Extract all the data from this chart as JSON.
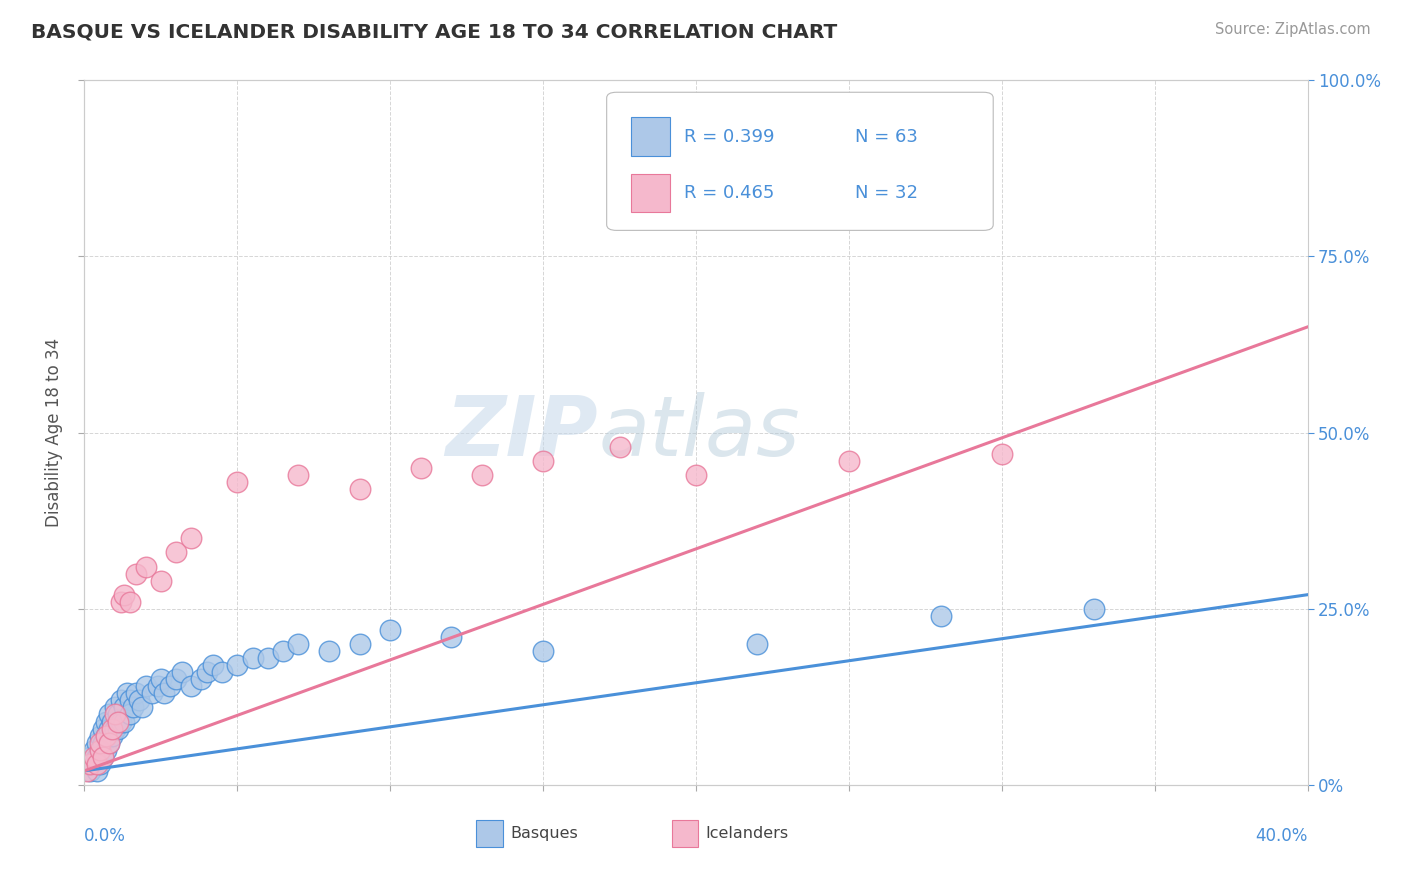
{
  "title": "BASQUE VS ICELANDER DISABILITY AGE 18 TO 34 CORRELATION CHART",
  "source": "Source: ZipAtlas.com",
  "ylabel": "Disability Age 18 to 34",
  "legend_blue_r": "R = 0.399",
  "legend_blue_n": "N = 63",
  "legend_pink_r": "R = 0.465",
  "legend_pink_n": "N = 32",
  "basque_color": "#adc8e8",
  "icelander_color": "#f5b8cc",
  "basque_line_color": "#4a90d9",
  "icelander_line_color": "#e8789a",
  "watermark": "ZIPatlas",
  "watermark_color_r": 180,
  "watermark_color_g": 210,
  "watermark_color_b": 235,
  "xmin": 0.0,
  "xmax": 0.4,
  "ymin": 0.0,
  "ymax": 1.0,
  "basque_line_x0": 0.0,
  "basque_line_y0": 0.02,
  "basque_line_x1": 0.4,
  "basque_line_y1": 0.27,
  "icelander_line_x0": 0.0,
  "icelander_line_y0": 0.02,
  "icelander_line_x1": 0.4,
  "icelander_line_y1": 0.65,
  "basque_x": [
    0.001,
    0.002,
    0.002,
    0.003,
    0.003,
    0.004,
    0.004,
    0.004,
    0.005,
    0.005,
    0.005,
    0.006,
    0.006,
    0.006,
    0.007,
    0.007,
    0.007,
    0.008,
    0.008,
    0.008,
    0.009,
    0.009,
    0.01,
    0.01,
    0.011,
    0.011,
    0.012,
    0.012,
    0.013,
    0.013,
    0.014,
    0.015,
    0.015,
    0.016,
    0.017,
    0.018,
    0.019,
    0.02,
    0.022,
    0.024,
    0.025,
    0.026,
    0.028,
    0.03,
    0.032,
    0.035,
    0.038,
    0.04,
    0.042,
    0.045,
    0.05,
    0.055,
    0.06,
    0.065,
    0.07,
    0.08,
    0.09,
    0.1,
    0.12,
    0.15,
    0.22,
    0.28,
    0.33
  ],
  "basque_y": [
    0.03,
    0.04,
    0.02,
    0.05,
    0.03,
    0.06,
    0.04,
    0.02,
    0.07,
    0.05,
    0.03,
    0.08,
    0.06,
    0.04,
    0.09,
    0.07,
    0.05,
    0.1,
    0.08,
    0.06,
    0.09,
    0.07,
    0.11,
    0.08,
    0.1,
    0.08,
    0.12,
    0.09,
    0.11,
    0.09,
    0.13,
    0.12,
    0.1,
    0.11,
    0.13,
    0.12,
    0.11,
    0.14,
    0.13,
    0.14,
    0.15,
    0.13,
    0.14,
    0.15,
    0.16,
    0.14,
    0.15,
    0.16,
    0.17,
    0.16,
    0.17,
    0.18,
    0.18,
    0.19,
    0.2,
    0.19,
    0.2,
    0.22,
    0.21,
    0.19,
    0.2,
    0.24,
    0.25
  ],
  "icelander_x": [
    0.001,
    0.002,
    0.003,
    0.004,
    0.005,
    0.005,
    0.006,
    0.007,
    0.008,
    0.009,
    0.01,
    0.011,
    0.012,
    0.013,
    0.015,
    0.017,
    0.02,
    0.025,
    0.03,
    0.035,
    0.05,
    0.07,
    0.09,
    0.11,
    0.13,
    0.15,
    0.175,
    0.2,
    0.25,
    0.3,
    0.18,
    0.275
  ],
  "icelander_y": [
    0.02,
    0.03,
    0.04,
    0.03,
    0.05,
    0.06,
    0.04,
    0.07,
    0.06,
    0.08,
    0.1,
    0.09,
    0.26,
    0.27,
    0.26,
    0.3,
    0.31,
    0.29,
    0.33,
    0.35,
    0.43,
    0.44,
    0.42,
    0.45,
    0.44,
    0.46,
    0.48,
    0.44,
    0.46,
    0.47,
    0.95,
    0.95
  ]
}
